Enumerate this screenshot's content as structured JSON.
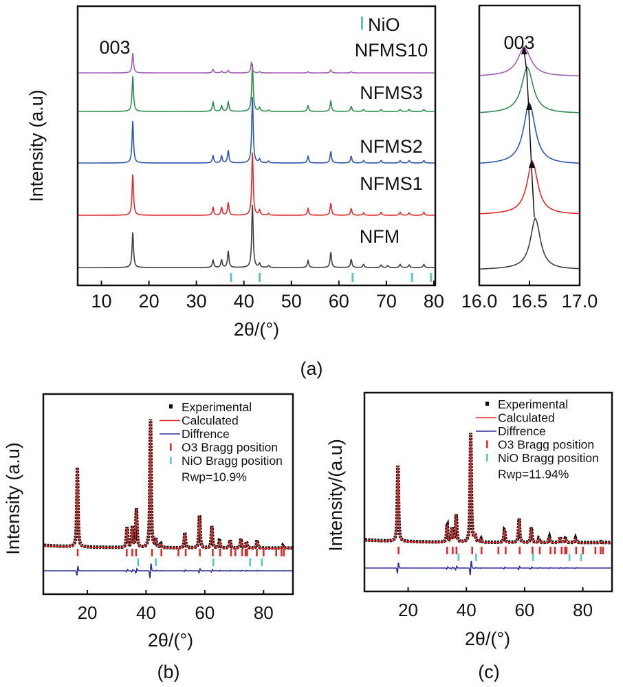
{
  "chart_data": [
    {
      "id": "a-main",
      "panel_label": "(a)",
      "type": "line",
      "title": "",
      "xlabel": "2θ/(°)",
      "ylabel": "Intensity (a.u)",
      "xlim": [
        5,
        80.3
      ],
      "xticks": [
        10,
        20,
        30,
        40,
        50,
        60,
        70,
        80
      ],
      "xtick_labels": [
        "10",
        "20",
        "30",
        "40",
        "50",
        "60",
        "70",
        "80"
      ],
      "yticks": [],
      "grid": false,
      "legend": "none (traces labelled inline at right)",
      "peak_label": {
        "text": "003",
        "x": 16.6
      },
      "nio_marker_legend": "NiO",
      "nio_positions": [
        37.3,
        43.3,
        62.9,
        75.4,
        79.4
      ],
      "series": [
        {
          "name": "NFM",
          "color": "#3d3d3d",
          "peaks": [
            [
              16.6,
              0.56
            ],
            [
              33.5,
              0.12
            ],
            [
              35.3,
              0.12
            ],
            [
              36.7,
              0.26
            ],
            [
              41.8,
              1.0
            ],
            [
              43.3,
              0.06
            ],
            [
              45.2,
              0.03
            ],
            [
              53.5,
              0.11
            ],
            [
              58.3,
              0.24
            ],
            [
              62.6,
              0.13
            ],
            [
              65.2,
              0.05
            ],
            [
              68.9,
              0.04
            ],
            [
              70.3,
              0.03
            ],
            [
              72.9,
              0.05
            ],
            [
              74.8,
              0.04
            ],
            [
              77.9,
              0.05
            ]
          ]
        },
        {
          "name": "NFMS1",
          "color": "#e02a2a",
          "peaks": [
            [
              16.6,
              0.68
            ],
            [
              33.5,
              0.13
            ],
            [
              35.3,
              0.13
            ],
            [
              36.7,
              0.21
            ],
            [
              41.8,
              1.05
            ],
            [
              43.3,
              0.08
            ],
            [
              45.2,
              0.03
            ],
            [
              53.5,
              0.11
            ],
            [
              58.3,
              0.2
            ],
            [
              62.6,
              0.11
            ],
            [
              65.2,
              0.04
            ],
            [
              68.9,
              0.05
            ],
            [
              72.9,
              0.05
            ],
            [
              74.8,
              0.04
            ],
            [
              77.9,
              0.05
            ]
          ]
        },
        {
          "name": "NFMS2",
          "color": "#2d57ad",
          "peaks": [
            [
              16.6,
              0.7
            ],
            [
              33.5,
              0.12
            ],
            [
              35.3,
              0.12
            ],
            [
              36.7,
              0.21
            ],
            [
              41.8,
              1.1
            ],
            [
              43.3,
              0.06
            ],
            [
              45.2,
              0.03
            ],
            [
              53.5,
              0.11
            ],
            [
              58.3,
              0.19
            ],
            [
              62.6,
              0.11
            ],
            [
              65.2,
              0.04
            ],
            [
              68.9,
              0.04
            ],
            [
              72.9,
              0.04
            ],
            [
              74.8,
              0.04
            ],
            [
              77.9,
              0.04
            ]
          ]
        },
        {
          "name": "NFMS3",
          "color": "#2f8c4f",
          "peaks": [
            [
              16.6,
              0.56
            ],
            [
              33.5,
              0.15
            ],
            [
              35.3,
              0.09
            ],
            [
              36.7,
              0.15
            ],
            [
              41.8,
              0.76
            ],
            [
              43.3,
              0.06
            ],
            [
              45.2,
              0.02
            ],
            [
              53.5,
              0.09
            ],
            [
              58.3,
              0.16
            ],
            [
              62.6,
              0.08
            ],
            [
              65.2,
              0.03
            ],
            [
              68.9,
              0.03
            ],
            [
              72.9,
              0.03
            ],
            [
              74.8,
              0.03
            ],
            [
              77.9,
              0.03
            ]
          ]
        },
        {
          "name": "NFMS10",
          "color": "#a25fb7",
          "peaks": [
            [
              16.6,
              0.33
            ],
            [
              33.5,
              0.06
            ],
            [
              35.3,
              0.03
            ],
            [
              36.7,
              0.04
            ],
            [
              41.6,
              0.18
            ],
            [
              43.3,
              0.02
            ],
            [
              53.5,
              0.02
            ],
            [
              58.3,
              0.05
            ],
            [
              62.6,
              0.02
            ]
          ]
        }
      ]
    },
    {
      "id": "a-inset",
      "type": "line",
      "title": "",
      "xlabel": "",
      "ylabel": "",
      "xlim": [
        16.0,
        17.0
      ],
      "xticks": [
        16.0,
        16.5,
        17.0
      ],
      "xtick_labels": [
        "16.0",
        "16.5",
        "17.0"
      ],
      "grid": false,
      "annotation": "003",
      "arrow": "peak shift to lower angle from NFM to NFMS10",
      "series": [
        {
          "name": "NFM",
          "color": "#3d3d3d",
          "peak_x": 16.56
        },
        {
          "name": "NFMS1",
          "color": "#e02a2a",
          "peak_x": 16.53
        },
        {
          "name": "NFMS2",
          "color": "#2d57ad",
          "peak_x": 16.5
        },
        {
          "name": "NFMS3",
          "color": "#2f8c4f",
          "peak_x": 16.48
        },
        {
          "name": "NFMS10",
          "color": "#a25fb7",
          "peak_x": 16.45
        }
      ]
    },
    {
      "id": "b",
      "panel_label": "(b)",
      "type": "line",
      "title": "",
      "xlabel": "2θ/(°)",
      "ylabel": "Intensity (a.u)",
      "xlim": [
        5,
        90
      ],
      "xticks": [
        20,
        40,
        60,
        80
      ],
      "xtick_labels": [
        "20",
        "40",
        "60",
        "80"
      ],
      "grid": false,
      "legend_position": "top-right",
      "legend": [
        "Experimental",
        "Calculated",
        "Diffrence",
        "O3 Bragg position",
        "NiO Bragg position"
      ],
      "rwp": "Rwp=10.9%",
      "peaks": [
        [
          16.6,
          0.61
        ],
        [
          33.5,
          0.16
        ],
        [
          35.3,
          0.16
        ],
        [
          36.7,
          0.3
        ],
        [
          41.5,
          1.0
        ],
        [
          43.3,
          0.06
        ],
        [
          45.0,
          0.03
        ],
        [
          53.2,
          0.12
        ],
        [
          58.2,
          0.26
        ],
        [
          62.4,
          0.17
        ],
        [
          65.0,
          0.06
        ],
        [
          68.6,
          0.06
        ],
        [
          72.3,
          0.07
        ],
        [
          74.2,
          0.05
        ],
        [
          77.8,
          0.06
        ],
        [
          86.5,
          0.02
        ]
      ],
      "o3_bragg": [
        16.7,
        33.4,
        35.3,
        36.6,
        42.0,
        45.2,
        51.0,
        53.5,
        58.3,
        62.7,
        65.2,
        68.9,
        70.4,
        72.7,
        73.9,
        74.4,
        77.7,
        80.0,
        84.3,
        86.1,
        86.9
      ],
      "nio_bragg": [
        37.3,
        43.3,
        62.9,
        75.4,
        79.4
      ]
    },
    {
      "id": "c",
      "panel_label": "(c)",
      "type": "line",
      "title": "",
      "xlabel": "2θ/(°)",
      "ylabel": "Intensity/(a.u)",
      "xlim": [
        5,
        90
      ],
      "xticks": [
        20,
        40,
        60,
        80
      ],
      "xtick_labels": [
        "20",
        "40",
        "60",
        "80"
      ],
      "grid": false,
      "legend_position": "top-right",
      "legend": [
        "Experimental",
        "Calculated",
        "Diffrence",
        "O3 Bragg position",
        "NiO Bragg position"
      ],
      "rwp": "Rwp=11.94%",
      "peaks": [
        [
          16.5,
          0.72
        ],
        [
          33.4,
          0.16
        ],
        [
          35.1,
          0.13
        ],
        [
          36.5,
          0.25
        ],
        [
          41.5,
          1.0
        ],
        [
          43.0,
          0.06
        ],
        [
          45.0,
          0.03
        ],
        [
          53.1,
          0.12
        ],
        [
          58.1,
          0.22
        ],
        [
          62.3,
          0.14
        ],
        [
          64.9,
          0.04
        ],
        [
          68.5,
          0.05
        ],
        [
          72.2,
          0.05
        ],
        [
          74.0,
          0.04
        ],
        [
          77.5,
          0.04
        ],
        [
          86.2,
          0.01
        ]
      ],
      "o3_bragg": [
        16.7,
        33.4,
        35.3,
        36.6,
        42.0,
        45.2,
        51.0,
        53.5,
        58.3,
        62.7,
        65.2,
        68.9,
        70.4,
        72.7,
        73.9,
        74.4,
        77.7,
        80.0,
        84.3,
        86.1,
        86.9
      ],
      "nio_bragg": [
        37.3,
        43.3,
        62.9,
        75.4,
        79.4
      ]
    }
  ],
  "colors": {
    "experimental": "#111111",
    "calculated": "#e02a2a",
    "difference": "#2b2f9a",
    "o3_bragg": "#e02a2a",
    "nio_bragg": "#5fc4c4",
    "axis": "#111111"
  }
}
